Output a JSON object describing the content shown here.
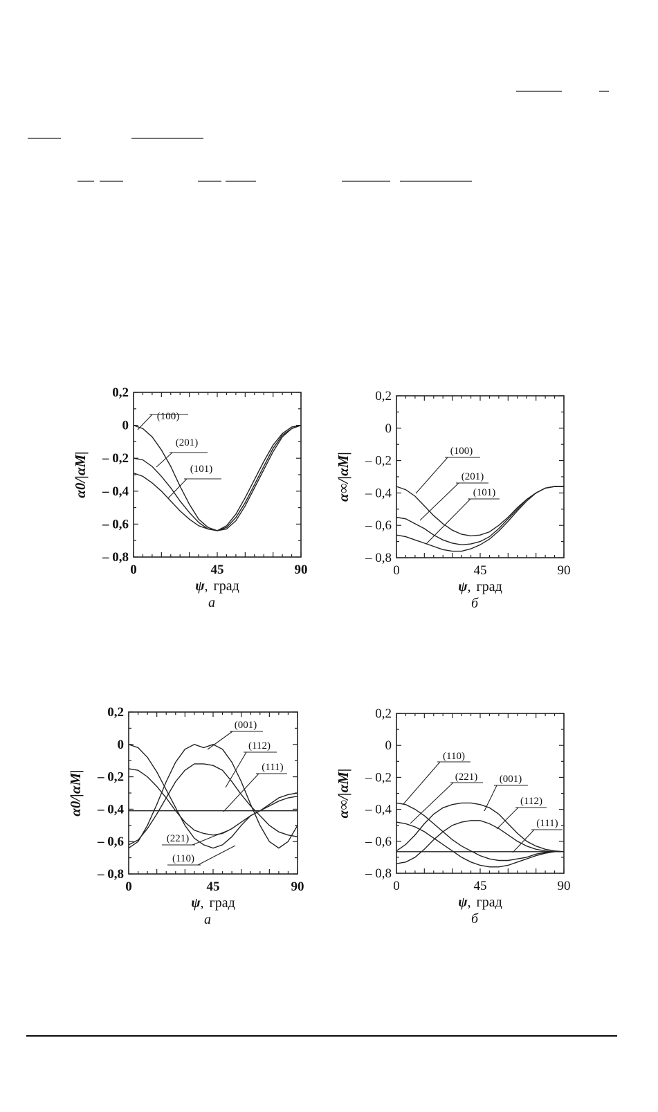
{
  "chart_data": [
    {
      "type": "line",
      "ylabel": "α0/|αM|",
      "xlabel_symbol": "ψ",
      "xlabel_unit": "град",
      "caption": "а",
      "xlim": [
        0,
        90
      ],
      "ylim": [
        -0.8,
        0.2
      ],
      "xticks": [
        "0",
        "45",
        "90"
      ],
      "yticks": [
        "0,2",
        "0",
        "– 0,2",
        "– 0,4",
        "– 0,6",
        "– 0,8"
      ],
      "grid": false,
      "series": [
        {
          "name": "(100)",
          "x": [
            0,
            5,
            10,
            15,
            20,
            25,
            30,
            35,
            40,
            45,
            50,
            55,
            60,
            65,
            70,
            75,
            80,
            85,
            90
          ],
          "y": [
            0,
            -0.02,
            -0.07,
            -0.15,
            -0.25,
            -0.37,
            -0.48,
            -0.57,
            -0.62,
            -0.64,
            -0.61,
            -0.54,
            -0.44,
            -0.33,
            -0.22,
            -0.12,
            -0.05,
            -0.01,
            0
          ]
        },
        {
          "name": "(201)",
          "x": [
            0,
            5,
            10,
            15,
            20,
            25,
            30,
            35,
            40,
            45,
            50,
            55,
            60,
            65,
            70,
            75,
            80,
            85,
            90
          ],
          "y": [
            -0.2,
            -0.21,
            -0.25,
            -0.31,
            -0.38,
            -0.46,
            -0.53,
            -0.59,
            -0.63,
            -0.64,
            -0.62,
            -0.56,
            -0.47,
            -0.36,
            -0.25,
            -0.14,
            -0.06,
            -0.02,
            0
          ]
        },
        {
          "name": "(101)",
          "x": [
            0,
            5,
            10,
            15,
            20,
            25,
            30,
            35,
            40,
            45,
            50,
            55,
            60,
            65,
            70,
            75,
            80,
            85,
            90
          ],
          "y": [
            -0.29,
            -0.31,
            -0.35,
            -0.4,
            -0.46,
            -0.52,
            -0.57,
            -0.61,
            -0.63,
            -0.64,
            -0.63,
            -0.58,
            -0.49,
            -0.38,
            -0.27,
            -0.16,
            -0.07,
            -0.02,
            0
          ]
        }
      ]
    },
    {
      "type": "line",
      "ylabel": "α∞/|αM|",
      "xlabel_symbol": "ψ",
      "xlabel_unit": "град",
      "caption": "б",
      "xlim": [
        0,
        90
      ],
      "ylim": [
        -0.8,
        0.2
      ],
      "xticks": [
        "0",
        "45",
        "90"
      ],
      "yticks": [
        "0,2",
        "0",
        "– 0,2",
        "– 0,4",
        "– 0,6",
        "– 0,8"
      ],
      "grid": false,
      "series": [
        {
          "name": "(100)",
          "x": [
            0,
            5,
            10,
            15,
            20,
            25,
            30,
            35,
            40,
            45,
            50,
            55,
            60,
            65,
            70,
            75,
            80,
            85,
            90
          ],
          "y": [
            -0.36,
            -0.38,
            -0.42,
            -0.48,
            -0.54,
            -0.59,
            -0.63,
            -0.655,
            -0.665,
            -0.66,
            -0.64,
            -0.6,
            -0.55,
            -0.49,
            -0.44,
            -0.4,
            -0.37,
            -0.36,
            -0.36
          ]
        },
        {
          "name": "(201)",
          "x": [
            0,
            5,
            10,
            15,
            20,
            25,
            30,
            35,
            40,
            45,
            50,
            55,
            60,
            65,
            70,
            75,
            80,
            85,
            90
          ],
          "y": [
            -0.55,
            -0.56,
            -0.59,
            -0.62,
            -0.66,
            -0.69,
            -0.71,
            -0.72,
            -0.715,
            -0.7,
            -0.67,
            -0.62,
            -0.56,
            -0.5,
            -0.44,
            -0.4,
            -0.37,
            -0.36,
            -0.36
          ]
        },
        {
          "name": "(101)",
          "x": [
            0,
            5,
            10,
            15,
            20,
            25,
            30,
            35,
            40,
            45,
            50,
            55,
            60,
            65,
            70,
            75,
            80,
            85,
            90
          ],
          "y": [
            -0.66,
            -0.67,
            -0.69,
            -0.71,
            -0.73,
            -0.75,
            -0.76,
            -0.76,
            -0.745,
            -0.72,
            -0.685,
            -0.635,
            -0.575,
            -0.51,
            -0.45,
            -0.4,
            -0.37,
            -0.36,
            -0.36
          ]
        }
      ]
    },
    {
      "type": "line",
      "ylabel": "α0/|αM|",
      "xlabel_symbol": "ψ",
      "xlabel_unit": "град",
      "caption": "а",
      "xlim": [
        0,
        90
      ],
      "ylim": [
        -0.8,
        0.2
      ],
      "xticks": [
        "0",
        "45",
        "90"
      ],
      "yticks": [
        "0,2",
        "0",
        "– 0,2",
        "– 0,4",
        "– 0,6",
        "– 0,8"
      ],
      "grid": false,
      "series": [
        {
          "name": "(001)",
          "x": [
            0,
            5,
            10,
            15,
            20,
            25,
            30,
            35,
            40,
            45,
            50,
            55,
            60,
            65,
            70,
            75,
            80,
            85,
            90
          ],
          "y": [
            -0.64,
            -0.6,
            -0.5,
            -0.37,
            -0.23,
            -0.11,
            -0.03,
            0,
            -0.02,
            0,
            -0.03,
            -0.11,
            -0.23,
            -0.37,
            -0.5,
            -0.6,
            -0.64,
            -0.6,
            -0.5
          ]
        },
        {
          "name": "(112)",
          "x": [
            0,
            5,
            10,
            15,
            20,
            25,
            30,
            35,
            40,
            45,
            50,
            55,
            60,
            65,
            70,
            75,
            80,
            85,
            90
          ],
          "y": [
            -0.62,
            -0.59,
            -0.52,
            -0.43,
            -0.33,
            -0.23,
            -0.16,
            -0.12,
            -0.12,
            -0.13,
            -0.16,
            -0.23,
            -0.31,
            -0.38,
            -0.44,
            -0.5,
            -0.54,
            -0.56,
            -0.57
          ]
        },
        {
          "name": "(111)",
          "x": [
            0,
            90
          ],
          "y": [
            -0.41,
            -0.41
          ]
        },
        {
          "name": "(221)",
          "x": [
            0,
            5,
            10,
            15,
            20,
            25,
            30,
            35,
            40,
            45,
            50,
            55,
            60,
            65,
            70,
            75,
            80,
            85,
            90
          ],
          "y": [
            -0.15,
            -0.16,
            -0.2,
            -0.26,
            -0.33,
            -0.41,
            -0.48,
            -0.53,
            -0.55,
            -0.56,
            -0.55,
            -0.52,
            -0.48,
            -0.44,
            -0.41,
            -0.38,
            -0.35,
            -0.33,
            -0.32
          ]
        },
        {
          "name": "(110)",
          "x": [
            0,
            5,
            10,
            15,
            20,
            25,
            30,
            35,
            40,
            45,
            50,
            55,
            60,
            65,
            70,
            75,
            80,
            85,
            90
          ],
          "y": [
            0,
            -0.02,
            -0.08,
            -0.17,
            -0.28,
            -0.39,
            -0.5,
            -0.58,
            -0.62,
            -0.64,
            -0.62,
            -0.57,
            -0.5,
            -0.44,
            -0.41,
            -0.37,
            -0.33,
            -0.31,
            -0.3
          ]
        }
      ]
    },
    {
      "type": "line",
      "ylabel": "α∞/|αM|",
      "xlabel_symbol": "ψ",
      "xlabel_unit": "град",
      "caption": "б",
      "xlim": [
        0,
        90
      ],
      "ylim": [
        -0.8,
        0.2
      ],
      "xticks": [
        "0",
        "45",
        "90"
      ],
      "yticks": [
        "0,2",
        "0",
        "– 0,2",
        "– 0,4",
        "– 0,6",
        "– 0,8"
      ],
      "grid": false,
      "series": [
        {
          "name": "(110)",
          "x": [
            0,
            5,
            10,
            15,
            20,
            25,
            30,
            35,
            40,
            45,
            50,
            55,
            60,
            65,
            70,
            75,
            80,
            85,
            90
          ],
          "y": [
            -0.36,
            -0.37,
            -0.4,
            -0.44,
            -0.49,
            -0.54,
            -0.59,
            -0.63,
            -0.66,
            -0.69,
            -0.71,
            -0.72,
            -0.72,
            -0.71,
            -0.7,
            -0.68,
            -0.67,
            -0.665,
            -0.665
          ]
        },
        {
          "name": "(221)",
          "x": [
            0,
            5,
            10,
            15,
            20,
            25,
            30,
            35,
            40,
            45,
            50,
            55,
            60,
            65,
            70,
            75,
            80,
            85,
            90
          ],
          "y": [
            -0.48,
            -0.49,
            -0.51,
            -0.54,
            -0.58,
            -0.62,
            -0.66,
            -0.7,
            -0.73,
            -0.75,
            -0.76,
            -0.76,
            -0.75,
            -0.73,
            -0.71,
            -0.69,
            -0.675,
            -0.665,
            -0.665
          ]
        },
        {
          "name": "(001)",
          "x": [
            0,
            5,
            10,
            15,
            20,
            25,
            30,
            35,
            40,
            45,
            50,
            55,
            60,
            65,
            70,
            75,
            80,
            85,
            90
          ],
          "y": [
            -0.66,
            -0.62,
            -0.56,
            -0.49,
            -0.43,
            -0.39,
            -0.37,
            -0.36,
            -0.36,
            -0.37,
            -0.39,
            -0.43,
            -0.49,
            -0.55,
            -0.6,
            -0.63,
            -0.65,
            -0.66,
            -0.665
          ]
        },
        {
          "name": "(112)",
          "x": [
            0,
            5,
            10,
            15,
            20,
            25,
            30,
            35,
            40,
            45,
            50,
            55,
            60,
            65,
            70,
            75,
            80,
            85,
            90
          ],
          "y": [
            -0.74,
            -0.73,
            -0.7,
            -0.65,
            -0.59,
            -0.54,
            -0.5,
            -0.48,
            -0.47,
            -0.47,
            -0.49,
            -0.52,
            -0.56,
            -0.6,
            -0.63,
            -0.65,
            -0.66,
            -0.665,
            -0.665
          ]
        },
        {
          "name": "(111)",
          "x": [
            0,
            90
          ],
          "y": [
            -0.665,
            -0.665
          ]
        }
      ]
    }
  ]
}
